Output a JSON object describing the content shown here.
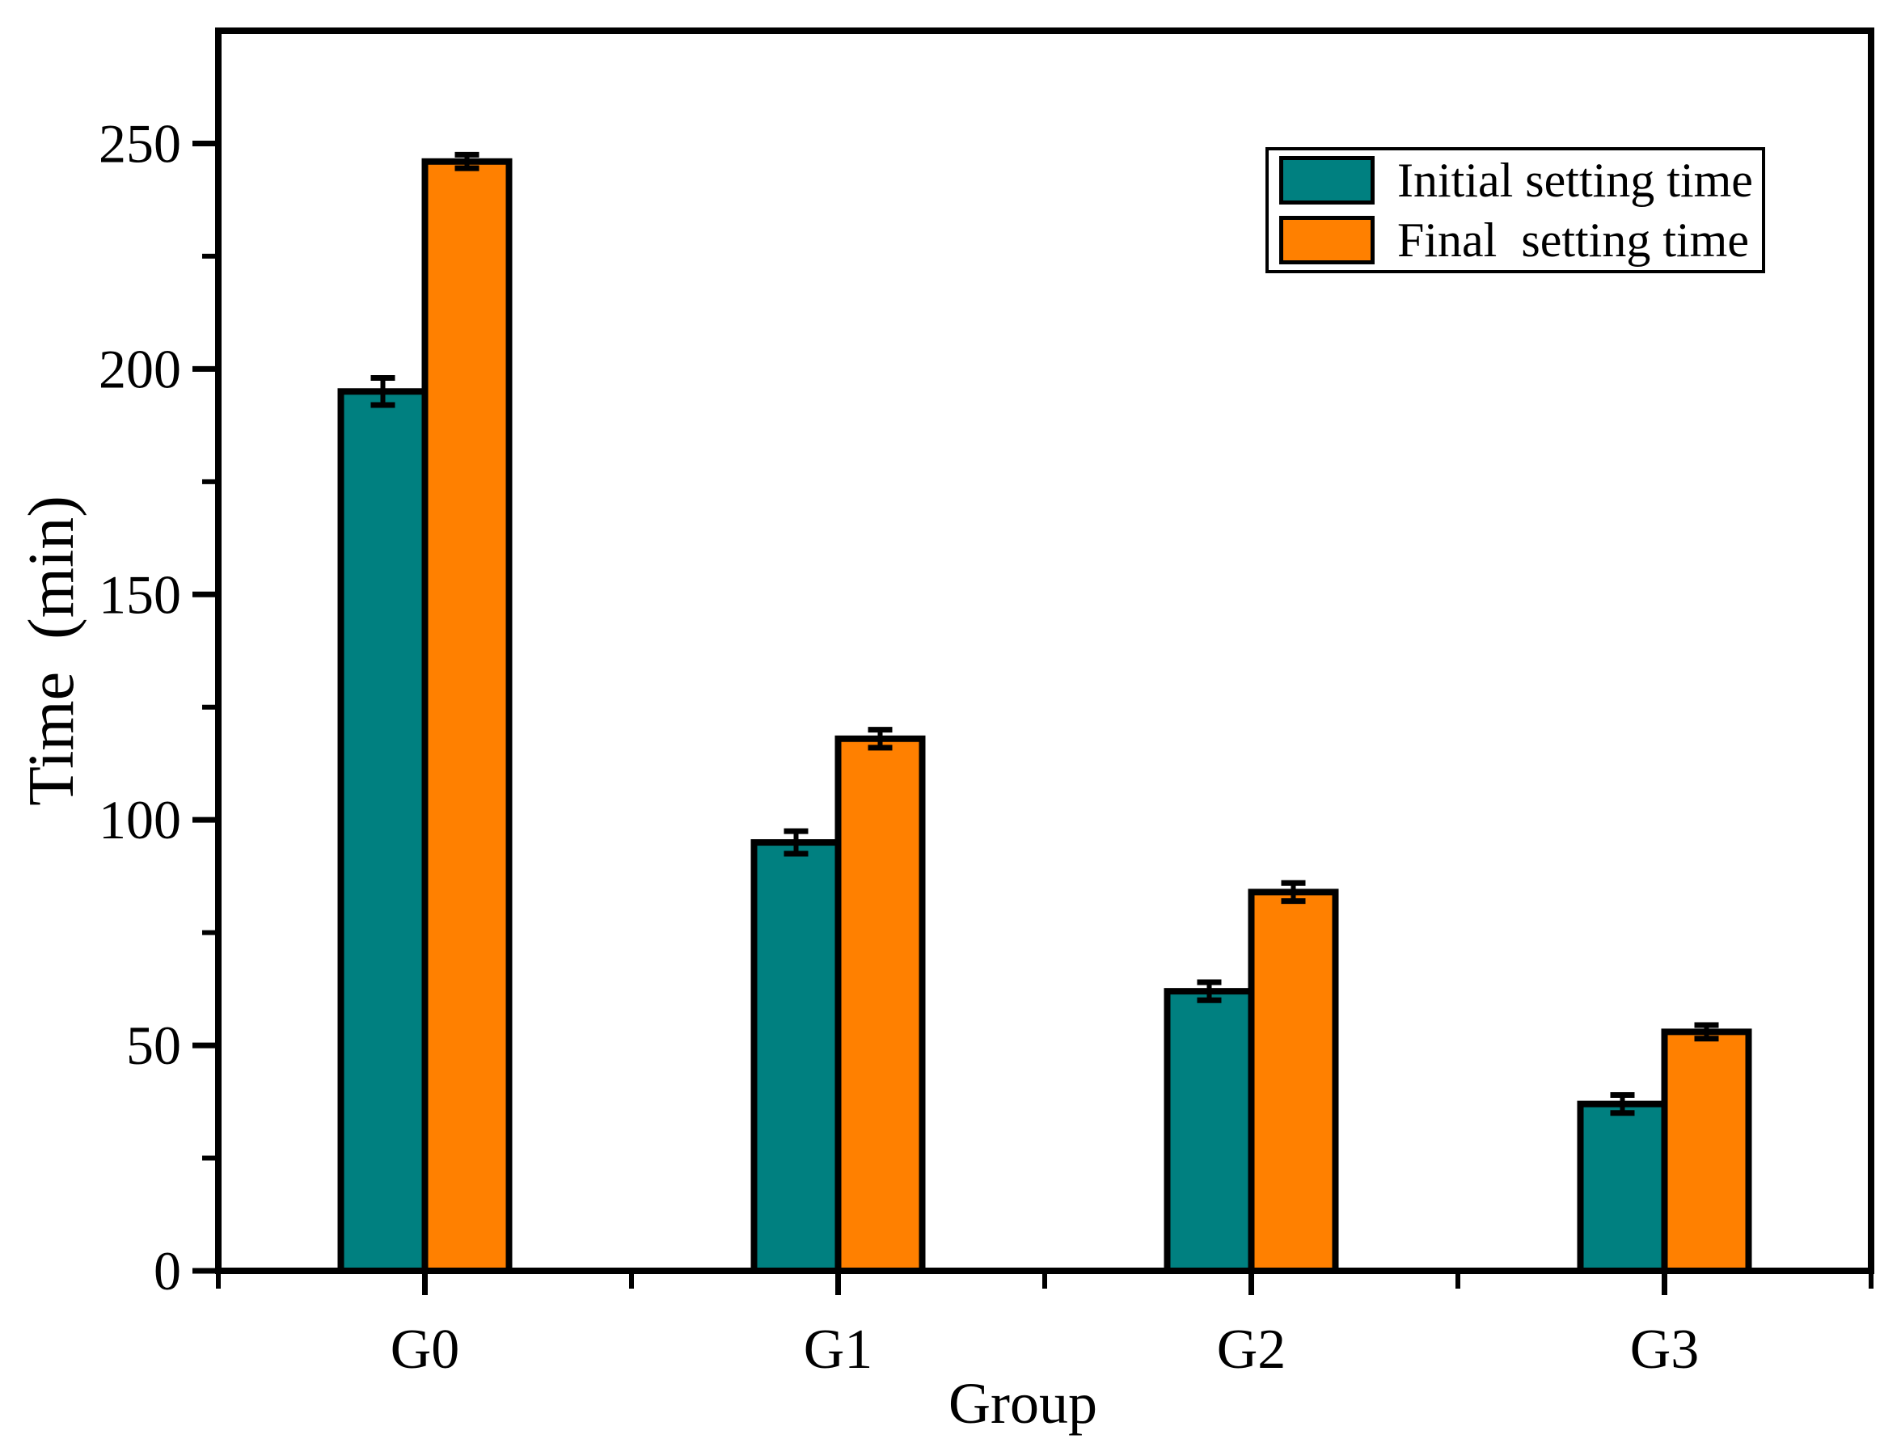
{
  "chart_data": {
    "type": "bar",
    "title": "",
    "xlabel": "Group",
    "ylabel": "Time  (min)",
    "categories": [
      "G0",
      "G1",
      "G2",
      "G3"
    ],
    "series": [
      {
        "name": "Initial setting time",
        "color": "#008080",
        "values": [
          195,
          95,
          62,
          37
        ],
        "errors": [
          3,
          2.5,
          2,
          2
        ]
      },
      {
        "name": "Final  setting time",
        "color": "#FF8000",
        "values": [
          246,
          118,
          84,
          53
        ],
        "errors": [
          1.5,
          2,
          2,
          1.5
        ]
      }
    ],
    "ylim": [
      0,
      275
    ],
    "y_major_ticks": [
      0,
      50,
      100,
      150,
      200,
      250
    ],
    "y_tick_labels": [
      "0",
      "50",
      "100",
      "150",
      "200",
      "250"
    ],
    "y_minor_step": 25,
    "grid": false,
    "legend_position": "top-right",
    "bar_edge_color": "#000000",
    "error_bar_color": "#000000",
    "axis_color": "#000000",
    "background_color": "#FFFFFF"
  }
}
